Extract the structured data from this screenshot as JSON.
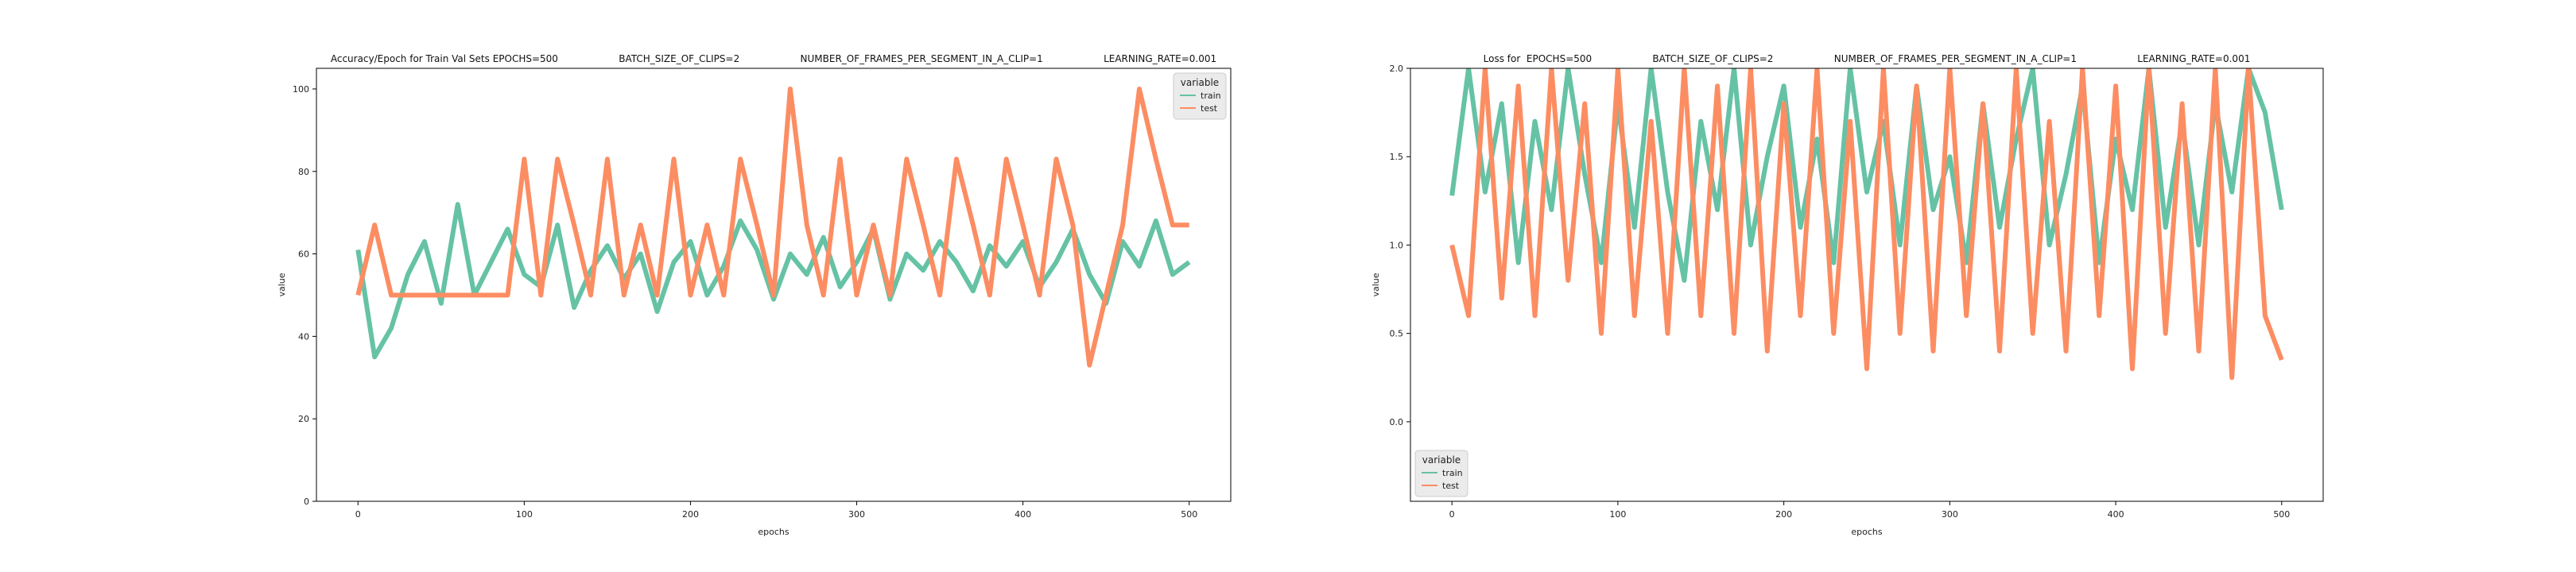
{
  "chart_data": [
    {
      "type": "line",
      "title": "Accuracy/Epoch for Train Val Sets EPOCHS=500                    BATCH_SIZE_OF_CLIPS=2                    NUMBER_OF_FRAMES_PER_SEGMENT_IN_A_CLIP=1                    LEARNING_RATE=0.001",
      "xlabel": "epochs",
      "ylabel": "value",
      "xlim": [
        -25,
        525
      ],
      "ylim": [
        0,
        105
      ],
      "xticks": [
        0,
        100,
        200,
        300,
        400,
        500
      ],
      "yticks": [
        0,
        20,
        40,
        60,
        80,
        100
      ],
      "grid": false,
      "legend": {
        "title": "variable",
        "placement": "top-right",
        "entries": [
          "train",
          "test"
        ]
      },
      "series": [
        {
          "name": "train",
          "color": "#66c2a5",
          "x": [
            0,
            10,
            20,
            30,
            40,
            50,
            60,
            70,
            80,
            90,
            100,
            110,
            120,
            130,
            140,
            150,
            160,
            170,
            180,
            190,
            200,
            210,
            220,
            230,
            240,
            250,
            260,
            270,
            280,
            290,
            300,
            310,
            320,
            330,
            340,
            350,
            360,
            370,
            380,
            390,
            400,
            410,
            420,
            430,
            440,
            450,
            460,
            470,
            480,
            490,
            500
          ],
          "values": [
            61,
            35,
            42,
            55,
            63,
            48,
            72,
            50,
            58,
            66,
            55,
            52,
            67,
            47,
            56,
            62,
            54,
            60,
            46,
            58,
            63,
            50,
            57,
            68,
            61,
            49,
            60,
            55,
            64,
            52,
            58,
            66,
            49,
            60,
            56,
            63,
            58,
            51,
            62,
            57,
            63,
            52,
            58,
            66,
            55,
            48,
            63,
            57,
            68,
            55,
            58
          ]
        },
        {
          "name": "test",
          "color": "#fc8d62",
          "x": [
            0,
            10,
            20,
            30,
            40,
            50,
            60,
            70,
            80,
            90,
            100,
            110,
            120,
            130,
            140,
            150,
            160,
            170,
            180,
            190,
            200,
            210,
            220,
            230,
            240,
            250,
            260,
            270,
            280,
            290,
            300,
            310,
            320,
            330,
            340,
            350,
            360,
            370,
            380,
            390,
            400,
            410,
            420,
            430,
            440,
            450,
            460,
            470,
            480,
            490,
            500
          ],
          "values": [
            50,
            67,
            50,
            50,
            50,
            50,
            50,
            50,
            50,
            50,
            83,
            50,
            83,
            67,
            50,
            83,
            50,
            67,
            50,
            83,
            50,
            67,
            50,
            83,
            67,
            50,
            100,
            67,
            50,
            83,
            50,
            67,
            50,
            83,
            67,
            50,
            83,
            67,
            50,
            83,
            67,
            50,
            83,
            67,
            33,
            50,
            67,
            100,
            83,
            67,
            67
          ]
        }
      ]
    },
    {
      "type": "line",
      "title": "Loss for  EPOCHS=500                    BATCH_SIZE_OF_CLIPS=2                    NUMBER_OF_FRAMES_PER_SEGMENT_IN_A_CLIP=1                    LEARNING_RATE=0.001",
      "xlabel": "epochs",
      "ylabel": "value",
      "xlim": [
        -25,
        525
      ],
      "ylim": [
        -0.45,
        2.0
      ],
      "xticks": [
        0,
        100,
        200,
        300,
        400,
        500
      ],
      "yticks": [
        0.0,
        0.5,
        1.0,
        1.5,
        2.0
      ],
      "grid": false,
      "legend": {
        "title": "variable",
        "placement": "bottom-left",
        "entries": [
          "train",
          "test"
        ]
      },
      "series": [
        {
          "name": "train",
          "color": "#66c2a5",
          "x": [
            0,
            10,
            20,
            30,
            40,
            50,
            60,
            70,
            80,
            90,
            100,
            110,
            120,
            130,
            140,
            150,
            160,
            170,
            180,
            190,
            200,
            210,
            220,
            230,
            240,
            250,
            260,
            270,
            280,
            290,
            300,
            310,
            320,
            330,
            340,
            350,
            360,
            370,
            380,
            390,
            400,
            410,
            420,
            430,
            440,
            450,
            460,
            470,
            480,
            490,
            500
          ],
          "values": [
            1.28,
            2.0,
            1.3,
            1.8,
            0.9,
            1.7,
            1.2,
            2.0,
            1.4,
            0.9,
            1.8,
            1.1,
            2.0,
            1.3,
            0.8,
            1.7,
            1.2,
            2.0,
            1.0,
            1.5,
            1.9,
            1.1,
            1.6,
            0.9,
            2.0,
            1.3,
            1.7,
            1.0,
            1.9,
            1.2,
            1.5,
            0.9,
            1.8,
            1.1,
            1.6,
            2.0,
            1.0,
            1.4,
            1.9,
            0.9,
            1.6,
            1.2,
            2.0,
            1.1,
            1.7,
            1.0,
            1.8,
            1.3,
            2.0,
            1.75,
            1.2
          ]
        },
        {
          "name": "test",
          "color": "#fc8d62",
          "x": [
            0,
            10,
            20,
            30,
            40,
            50,
            60,
            70,
            80,
            90,
            100,
            110,
            120,
            130,
            140,
            150,
            160,
            170,
            180,
            190,
            200,
            210,
            220,
            230,
            240,
            250,
            260,
            270,
            280,
            290,
            300,
            310,
            320,
            330,
            340,
            350,
            360,
            370,
            380,
            390,
            400,
            410,
            420,
            430,
            440,
            450,
            460,
            470,
            480,
            490,
            500
          ],
          "values": [
            1.0,
            0.6,
            2.0,
            0.7,
            1.9,
            0.6,
            2.0,
            0.8,
            1.8,
            0.5,
            2.0,
            0.6,
            1.7,
            0.5,
            2.0,
            0.6,
            1.9,
            0.5,
            2.0,
            0.4,
            1.8,
            0.6,
            2.0,
            0.5,
            1.7,
            0.3,
            2.0,
            0.5,
            1.9,
            0.4,
            2.0,
            0.6,
            1.8,
            0.4,
            2.0,
            0.5,
            1.7,
            0.4,
            2.0,
            0.6,
            1.9,
            0.3,
            2.0,
            0.5,
            1.8,
            0.4,
            2.0,
            0.25,
            2.0,
            0.6,
            0.35
          ]
        }
      ]
    }
  ]
}
